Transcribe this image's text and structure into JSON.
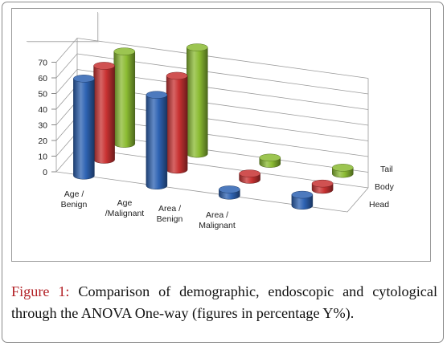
{
  "caption": {
    "label": "Figure 1:",
    "text": " Comparison of demographic, endoscopic and cytological through the ANOVA One-way (figures in percentage Y%)."
  },
  "chart_data": {
    "type": "bar",
    "style": "3d-cylinder",
    "categories": [
      "Age / Benign",
      "Age /Malignant",
      "Area / Benign",
      "Area / Malignant"
    ],
    "depth_categories": [
      "Head",
      "Body",
      "Tail"
    ],
    "series": [
      {
        "name": "Head",
        "values": [
          62,
          58,
          4,
          7
        ],
        "color": "#2e63b3"
      },
      {
        "name": "Body",
        "values": [
          60,
          60,
          4,
          4
        ],
        "color": "#c83232"
      },
      {
        "name": "Tail",
        "values": [
          59,
          68,
          4,
          4
        ],
        "color": "#8bbb32"
      }
    ],
    "yticks": [
      0,
      10,
      20,
      30,
      40,
      50,
      60,
      70
    ],
    "ylim": [
      0,
      70
    ],
    "grid": true
  }
}
